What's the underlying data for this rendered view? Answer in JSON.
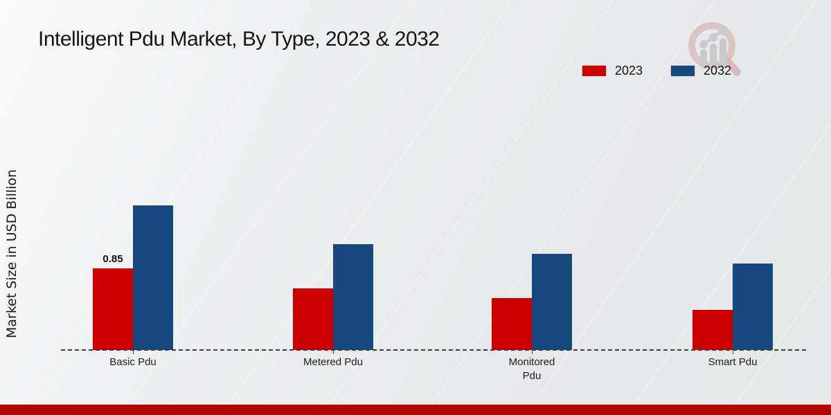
{
  "chart_data": {
    "type": "bar",
    "title": "Intelligent Pdu Market, By Type, 2023 & 2032",
    "ylabel": "Market Size in USD Billion",
    "xlabel": "",
    "categories": [
      "Basic Pdu",
      "Metered Pdu",
      "Monitored Pdu",
      "Smart Pdu"
    ],
    "series": [
      {
        "name": "2023",
        "color": "#cc0000",
        "values": [
          0.85,
          0.64,
          0.54,
          0.42
        ]
      },
      {
        "name": "2032",
        "color": "#164a7e",
        "values": [
          1.5,
          1.1,
          1.0,
          0.9
        ]
      }
    ],
    "value_labels": [
      {
        "category_index": 0,
        "series_index": 0,
        "text": "0.85"
      }
    ],
    "ylim": [
      0,
      1.75
    ],
    "grid": false,
    "legend_position": "top-right",
    "baseline_style": "dashed"
  },
  "footer": {
    "accent_color": "#b30500"
  },
  "logo": {
    "name": "market-research-magnifier-logo"
  }
}
